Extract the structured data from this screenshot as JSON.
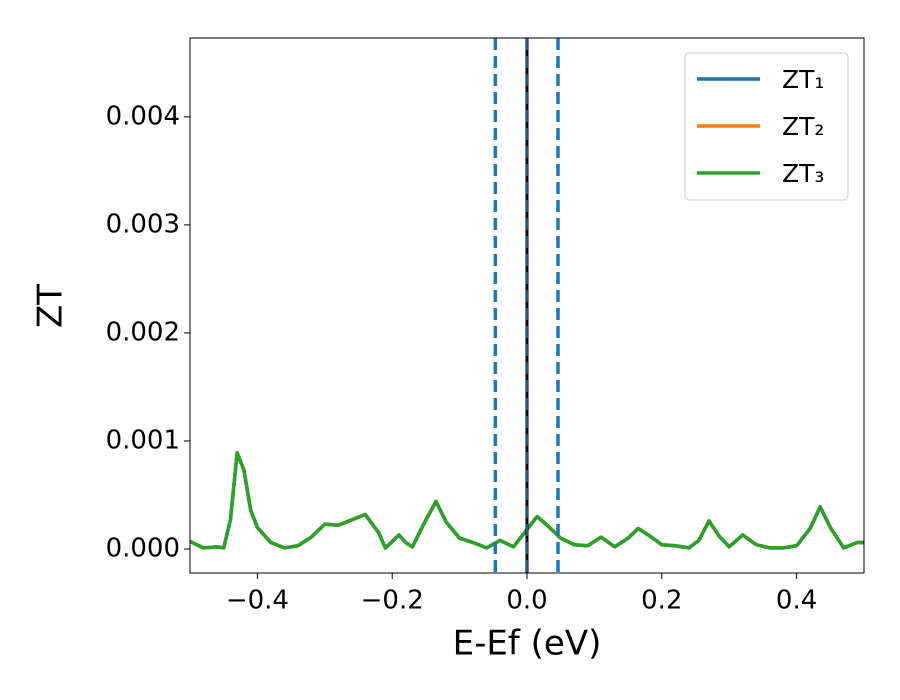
{
  "chart_data": {
    "type": "line",
    "x_label": "E-Ef (eV)",
    "y_label": "ZT",
    "x": [
      -0.5,
      -0.48,
      -0.46,
      -0.45,
      -0.44,
      -0.43,
      -0.42,
      -0.41,
      -0.4,
      -0.38,
      -0.36,
      -0.34,
      -0.32,
      -0.3,
      -0.28,
      -0.26,
      -0.24,
      -0.22,
      -0.21,
      -0.19,
      -0.18,
      -0.17,
      -0.15,
      -0.135,
      -0.12,
      -0.1,
      -0.08,
      -0.06,
      -0.04,
      -0.02,
      0.0,
      0.015,
      0.03,
      0.05,
      0.07,
      0.09,
      0.11,
      0.13,
      0.15,
      0.165,
      0.18,
      0.2,
      0.22,
      0.24,
      0.255,
      0.27,
      0.285,
      0.3,
      0.32,
      0.34,
      0.36,
      0.38,
      0.4,
      0.42,
      0.435,
      0.45,
      0.47,
      0.49,
      0.5
    ],
    "series": [
      {
        "name": "ZT₁",
        "color": "#1f77b4",
        "values": [
          7e-05,
          1e-05,
          2e-05,
          1e-05,
          0.00027,
          0.00089,
          0.00073,
          0.00036,
          0.0002,
          6e-05,
          1e-05,
          3e-05,
          0.00011,
          0.00023,
          0.00022,
          0.00027,
          0.00032,
          0.00015,
          1e-05,
          0.00013,
          6e-05,
          2e-05,
          0.00027,
          0.00044,
          0.00025,
          0.0001,
          6e-05,
          1e-05,
          8e-05,
          2e-05,
          0.00018,
          0.0003,
          0.00022,
          0.0001,
          4e-05,
          3e-05,
          0.00011,
          2e-05,
          0.0001,
          0.00019,
          0.00013,
          4e-05,
          3e-05,
          1e-05,
          8e-05,
          0.00026,
          0.00012,
          2e-05,
          0.00013,
          4e-05,
          1e-05,
          1e-05,
          3e-05,
          0.00019,
          0.00039,
          0.0002,
          1e-05,
          6e-05,
          6e-05
        ]
      },
      {
        "name": "ZT₂",
        "color": "#ff7f0e",
        "values": [
          7e-05,
          1e-05,
          2e-05,
          1e-05,
          0.00027,
          0.00089,
          0.00073,
          0.00036,
          0.0002,
          6e-05,
          1e-05,
          3e-05,
          0.00011,
          0.00023,
          0.00022,
          0.00027,
          0.00032,
          0.00015,
          1e-05,
          0.00013,
          6e-05,
          2e-05,
          0.00027,
          0.00044,
          0.00025,
          0.0001,
          6e-05,
          1e-05,
          8e-05,
          2e-05,
          0.00018,
          0.0003,
          0.00022,
          0.0001,
          4e-05,
          3e-05,
          0.00011,
          2e-05,
          0.0001,
          0.00019,
          0.00013,
          4e-05,
          3e-05,
          1e-05,
          8e-05,
          0.00026,
          0.00012,
          2e-05,
          0.00013,
          4e-05,
          1e-05,
          1e-05,
          3e-05,
          0.00019,
          0.00039,
          0.0002,
          1e-05,
          6e-05,
          6e-05
        ]
      },
      {
        "name": "ZT₃",
        "color": "#2ca02c",
        "values": [
          7e-05,
          1e-05,
          2e-05,
          1e-05,
          0.00027,
          0.00089,
          0.00073,
          0.00036,
          0.0002,
          6e-05,
          1e-05,
          3e-05,
          0.00011,
          0.00023,
          0.00022,
          0.00027,
          0.00032,
          0.00015,
          1e-05,
          0.00013,
          6e-05,
          2e-05,
          0.00027,
          0.00044,
          0.00025,
          0.0001,
          6e-05,
          1e-05,
          8e-05,
          2e-05,
          0.00018,
          0.0003,
          0.00022,
          0.0001,
          4e-05,
          3e-05,
          0.00011,
          2e-05,
          0.0001,
          0.00019,
          0.00013,
          4e-05,
          3e-05,
          1e-05,
          8e-05,
          0.00026,
          0.00012,
          2e-05,
          0.00013,
          4e-05,
          1e-05,
          1e-05,
          3e-05,
          0.00019,
          0.00039,
          0.0002,
          1e-05,
          6e-05,
          6e-05
        ]
      }
    ],
    "dashed_lines": {
      "color": "#1f77b4",
      "x": [
        -0.047,
        0.046
      ]
    },
    "fermi_line": {
      "color": "#000000",
      "x": 0.0
    },
    "xlim": [
      -0.5,
      0.5
    ],
    "ylim": [
      -0.000222,
      0.00473
    ],
    "xticks": [
      {
        "value": -0.4,
        "label": "−0.4"
      },
      {
        "value": -0.2,
        "label": "−0.2"
      },
      {
        "value": 0.0,
        "label": "0.0"
      },
      0.2,
      0.4
    ],
    "yticks": [
      {
        "value": 0.0,
        "label": "0.000"
      },
      {
        "value": 0.001,
        "label": "0.001"
      },
      {
        "value": 0.002,
        "label": "0.002"
      },
      {
        "value": 0.003,
        "label": "0.003"
      },
      {
        "value": 0.004,
        "label": "0.004"
      }
    ],
    "legend": "upper right"
  }
}
